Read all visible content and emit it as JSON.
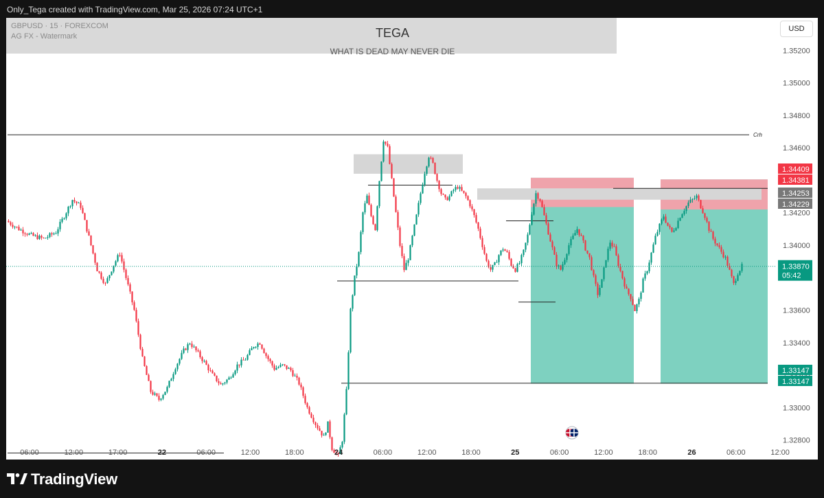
{
  "header": {
    "attribution": "Only_Tega created with TradingView.com, Mar 25, 2026 07:24 UTC+1"
  },
  "watermark": {
    "symbol": "GBPUSD · 15 · FOREXCOM",
    "publisher": "AG FX - Watermark",
    "title": "TEGA",
    "subtitle": "WHAT IS DEAD MAY NEVER DIE"
  },
  "currency_button": "USD",
  "footer": {
    "brand": "TradingView"
  },
  "colors": {
    "bull": "#089981",
    "bear": "#f23645",
    "target": "#7ed1c0",
    "stop": "#f5a0aa",
    "zone": "#d6d6d6",
    "price_tag": "#089981",
    "stop_tag": "#f23645",
    "gray_tag": "#787878"
  },
  "chart_data": {
    "type": "candlestick",
    "instrument": "GBPUSD",
    "timeframe": "15",
    "ylim": [
      1.3268,
      1.354
    ],
    "y_ticks": [
      "1.32800",
      "1.33000",
      "1.33200",
      "1.33400",
      "1.33600",
      "1.33800",
      "1.34000",
      "1.34200",
      "1.34400",
      "1.34600",
      "1.34800",
      "1.35000",
      "1.35200"
    ],
    "x_ticks": [
      "06:00",
      "12:00",
      "17:00",
      "22",
      "06:00",
      "12:00",
      "18:00",
      "24",
      "06:00",
      "12:00",
      "18:00",
      "25",
      "06:00",
      "12:00",
      "18:00",
      "26",
      "06:00",
      "12:00"
    ],
    "x_ticks_bold": [
      "22",
      "24",
      "25",
      "26"
    ],
    "current_price": {
      "value": "1.33870",
      "countdown": "05:42"
    },
    "price_tags": [
      {
        "label": "1.34409",
        "kind": "stop"
      },
      {
        "label": "1.34381",
        "kind": "stop"
      },
      {
        "label": "1.34253",
        "kind": "gray"
      },
      {
        "label": "1.34229",
        "kind": "gray"
      },
      {
        "label": "1.33147",
        "kind": "target"
      },
      {
        "label": "1.33147",
        "kind": "target"
      }
    ],
    "level_label": "Crh",
    "series_trend": [
      [
        0,
        1.3415
      ],
      [
        6,
        1.341
      ],
      [
        12,
        1.3406
      ],
      [
        18,
        1.3404
      ],
      [
        24,
        1.3408
      ],
      [
        28,
        1.3418
      ],
      [
        32,
        1.3428
      ],
      [
        36,
        1.3424
      ],
      [
        40,
        1.3405
      ],
      [
        44,
        1.3385
      ],
      [
        48,
        1.3376
      ],
      [
        52,
        1.3388
      ],
      [
        55,
        1.3395
      ],
      [
        58,
        1.338
      ],
      [
        62,
        1.336
      ],
      [
        66,
        1.333
      ],
      [
        70,
        1.331
      ],
      [
        74,
        1.3305
      ],
      [
        78,
        1.3312
      ],
      [
        82,
        1.3325
      ],
      [
        86,
        1.3335
      ],
      [
        89,
        1.334
      ],
      [
        92,
        1.3335
      ],
      [
        96,
        1.3328
      ],
      [
        100,
        1.332
      ],
      [
        104,
        1.3314
      ],
      [
        108,
        1.3318
      ],
      [
        112,
        1.3326
      ],
      [
        116,
        1.333
      ],
      [
        120,
        1.3338
      ],
      [
        123,
        1.334
      ],
      [
        126,
        1.3332
      ],
      [
        130,
        1.3324
      ],
      [
        134,
        1.3326
      ],
      [
        138,
        1.3323
      ],
      [
        142,
        1.3315
      ],
      [
        146,
        1.33
      ],
      [
        150,
        1.329
      ],
      [
        154,
        1.3282
      ],
      [
        156,
        1.329
      ],
      [
        158,
        1.3275
      ],
      [
        161,
        1.327
      ],
      [
        163,
        1.328
      ],
      [
        165,
        1.331
      ],
      [
        167,
        1.336
      ],
      [
        169,
        1.338
      ],
      [
        171,
        1.3395
      ],
      [
        173,
        1.342
      ],
      [
        175,
        1.343
      ],
      [
        177,
        1.3418
      ],
      [
        179,
        1.341
      ],
      [
        181,
        1.344
      ],
      [
        183,
        1.3465
      ],
      [
        185,
        1.346
      ],
      [
        187,
        1.344
      ],
      [
        189,
        1.342
      ],
      [
        191,
        1.34
      ],
      [
        193,
        1.3385
      ],
      [
        195,
        1.3392
      ],
      [
        197,
        1.3405
      ],
      [
        199,
        1.3418
      ],
      [
        201,
        1.3432
      ],
      [
        203,
        1.3445
      ],
      [
        205,
        1.3455
      ],
      [
        207,
        1.345
      ],
      [
        209,
        1.344
      ],
      [
        211,
        1.3432
      ],
      [
        213,
        1.3428
      ],
      [
        215,
        1.343
      ],
      [
        217,
        1.3434
      ],
      [
        219,
        1.3436
      ],
      [
        221,
        1.3433
      ],
      [
        223,
        1.343
      ],
      [
        225,
        1.3425
      ],
      [
        227,
        1.3418
      ],
      [
        229,
        1.341
      ],
      [
        231,
        1.34
      ],
      [
        233,
        1.339
      ],
      [
        235,
        1.3385
      ],
      [
        237,
        1.3388
      ],
      [
        239,
        1.3394
      ],
      [
        241,
        1.3398
      ],
      [
        243,
        1.3395
      ],
      [
        245,
        1.3388
      ],
      [
        247,
        1.3385
      ],
      [
        249,
        1.3389
      ],
      [
        251,
        1.3396
      ],
      [
        253,
        1.3406
      ],
      [
        255,
        1.342
      ],
      [
        257,
        1.3432
      ],
      [
        259,
        1.3428
      ],
      [
        261,
        1.3418
      ],
      [
        263,
        1.3408
      ],
      [
        265,
        1.3398
      ],
      [
        267,
        1.3388
      ],
      [
        269,
        1.3385
      ],
      [
        271,
        1.3392
      ],
      [
        273,
        1.34
      ],
      [
        275,
        1.3405
      ],
      [
        277,
        1.341
      ],
      [
        279,
        1.3405
      ],
      [
        281,
        1.3398
      ],
      [
        283,
        1.3392
      ],
      [
        285,
        1.338
      ],
      [
        287,
        1.337
      ],
      [
        289,
        1.3378
      ],
      [
        291,
        1.3392
      ],
      [
        293,
        1.3402
      ],
      [
        295,
        1.3398
      ],
      [
        297,
        1.3388
      ],
      [
        299,
        1.338
      ],
      [
        301,
        1.3372
      ],
      [
        303,
        1.3368
      ],
      [
        305,
        1.336
      ],
      [
        307,
        1.3366
      ],
      [
        309,
        1.3378
      ],
      [
        311,
        1.3385
      ],
      [
        313,
        1.3395
      ],
      [
        315,
        1.3405
      ],
      [
        317,
        1.3412
      ],
      [
        319,
        1.3418
      ],
      [
        321,
        1.3412
      ],
      [
        323,
        1.3408
      ],
      [
        325,
        1.3412
      ],
      [
        327,
        1.3418
      ],
      [
        329,
        1.3422
      ],
      [
        331,
        1.3426
      ],
      [
        333,
        1.3428
      ],
      [
        335,
        1.343
      ],
      [
        337,
        1.3424
      ],
      [
        339,
        1.3418
      ],
      [
        341,
        1.341
      ],
      [
        343,
        1.3404
      ],
      [
        345,
        1.34
      ],
      [
        347,
        1.3396
      ],
      [
        349,
        1.3392
      ],
      [
        351,
        1.3384
      ],
      [
        353,
        1.3376
      ],
      [
        355,
        1.3383
      ],
      [
        357,
        1.3387
      ]
    ],
    "overlays": [
      {
        "kind": "target_zone",
        "from": [
          254,
          1.34415
        ],
        "to": [
          304,
          1.33147
        ]
      },
      {
        "kind": "target_zone",
        "from": [
          317,
          1.34405
        ],
        "to": [
          369,
          1.33147
        ]
      },
      {
        "kind": "stop_zone",
        "from": [
          254,
          1.34415
        ],
        "to": [
          304,
          1.34235
        ]
      },
      {
        "kind": "stop_zone",
        "from": [
          317,
          1.34405
        ],
        "to": [
          369,
          1.3422
        ]
      },
      {
        "kind": "supply_zone",
        "from": [
          168,
          1.3456
        ],
        "to": [
          221,
          1.3444
        ]
      },
      {
        "kind": "supply_zone",
        "from": [
          228,
          1.3435
        ],
        "to": [
          366,
          1.3428
        ]
      },
      {
        "kind": "level",
        "from": [
          0,
          1.3468
        ],
        "to": [
          360,
          1.3468
        ]
      },
      {
        "kind": "level",
        "from": [
          0,
          1.3272
        ],
        "to": [
          105,
          1.3272
        ]
      },
      {
        "kind": "level",
        "from": [
          162,
          1.3315
        ],
        "to": [
          369,
          1.3315
        ]
      },
      {
        "kind": "level",
        "from": [
          160,
          1.3378
        ],
        "to": [
          248,
          1.3378
        ]
      },
      {
        "kind": "level",
        "from": [
          175,
          1.3437
        ],
        "to": [
          216,
          1.3437
        ]
      },
      {
        "kind": "level",
        "from": [
          242,
          1.3415
        ],
        "to": [
          265,
          1.3415
        ]
      },
      {
        "kind": "level",
        "from": [
          248,
          1.3365
        ],
        "to": [
          266,
          1.3365
        ]
      },
      {
        "kind": "level",
        "from": [
          294,
          1.3435
        ],
        "to": [
          369,
          1.3435
        ]
      }
    ]
  }
}
